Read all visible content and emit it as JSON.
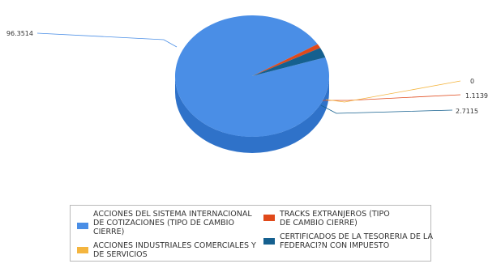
{
  "chart_data": {
    "type": "pie",
    "slices": [
      {
        "label": "ACCIONES DEL SISTEMA INTERNACIONAL DE COTIZACIONES (TIPO DE CAMBIO CIERRE)",
        "value": 96.3514,
        "value_label": "96.3514",
        "color": "#4a8ee6",
        "side_color": "#2f72c9"
      },
      {
        "label": "TRACKS EXTRANJEROS (TIPO DE CAMBIO CIERRE)",
        "value": 1.1139,
        "value_label": "1.1139",
        "color": "#e0491a",
        "side_color": "#b23710"
      },
      {
        "label": "ACCIONES INDUSTRIALES COMERCIALES Y DE SERVICIOS",
        "value": 0,
        "value_label": "0",
        "color": "#f4b53f",
        "side_color": "#d59626"
      },
      {
        "label": "CERTIFICADOS DE LA TESORERIA DE LA FEDERACI?N CON IMPUESTO",
        "value": 2.7115,
        "value_label": "2.7115",
        "color": "#15608f",
        "side_color": "#0c4569"
      }
    ],
    "legend_position": "bottom"
  }
}
